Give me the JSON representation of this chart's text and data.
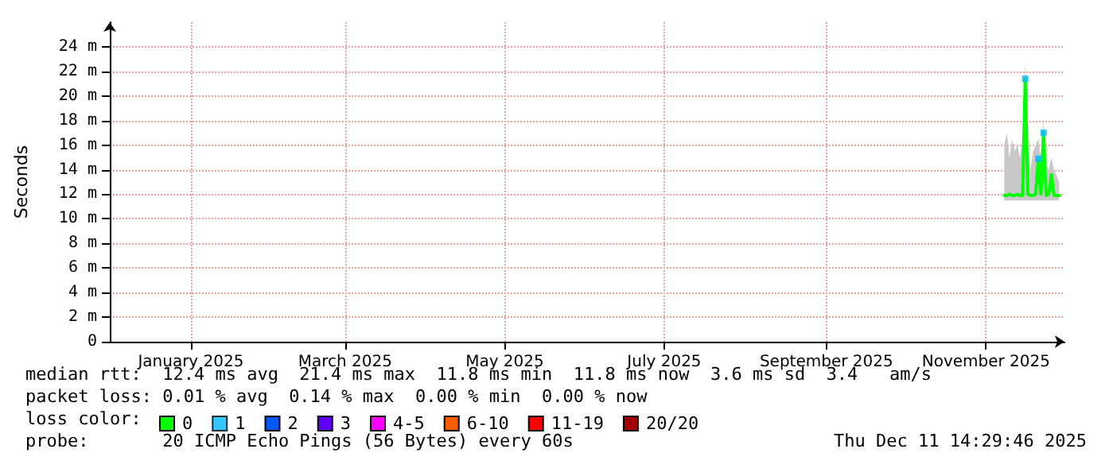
{
  "chart_data": {
    "type": "line",
    "ylabel": "Seconds",
    "x": [
      "2025-11-18",
      "2025-11-19",
      "2025-11-20",
      "2025-11-21",
      "2025-11-22",
      "2025-11-23",
      "2025-11-24",
      "2025-11-25",
      "2025-11-26",
      "2025-11-27",
      "2025-11-28",
      "2025-11-29",
      "2025-11-30",
      "2025-12-01",
      "2025-12-02",
      "2025-12-03",
      "2025-12-04",
      "2025-12-05",
      "2025-12-06",
      "2025-12-07",
      "2025-12-08",
      "2025-12-09"
    ],
    "xlim": [
      "2024-12-11",
      "2025-12-11"
    ],
    "xticks": [
      {
        "value": "2025-01-11",
        "label": "January 2025"
      },
      {
        "value": "2025-03-11",
        "label": "March 2025"
      },
      {
        "value": "2025-05-11",
        "label": "May 2025"
      },
      {
        "value": "2025-07-11",
        "label": "July 2025"
      },
      {
        "value": "2025-09-11",
        "label": "September 2025"
      },
      {
        "value": "2025-11-11",
        "label": "November 2025"
      }
    ],
    "ylim": [
      0,
      26
    ],
    "yticks": [
      0,
      {
        "value": 2,
        "label": "2 m"
      },
      {
        "value": 4,
        "label": "4 m"
      },
      {
        "value": 6,
        "label": "6 m"
      },
      {
        "value": 8,
        "label": "8 m"
      },
      {
        "value": 10,
        "label": "10 m"
      },
      {
        "value": 12,
        "label": "12 m"
      },
      {
        "value": 14,
        "label": "14 m"
      },
      {
        "value": 16,
        "label": "16 m"
      },
      {
        "value": 18,
        "label": "18 m"
      },
      {
        "value": 20,
        "label": "20 m"
      },
      {
        "value": 22,
        "label": "22 m"
      },
      {
        "value": 24,
        "label": "24 m"
      }
    ],
    "grid": true,
    "legend": "bottom",
    "legend_title": "loss color:",
    "marker": "none",
    "series": [
      {
        "name": "0",
        "color": "#00ff00",
        "values": [
          11.9,
          11.9,
          12.0,
          11.9,
          11.9,
          12.0,
          11.9,
          11.9,
          21.4,
          12.0,
          11.9,
          11.9,
          12.0,
          14.9,
          12.0,
          17.0,
          11.9,
          12.0,
          13.6,
          11.9,
          11.9,
          11.9
        ],
        "lower": [
          11.5,
          11.5,
          11.5,
          11.5,
          11.5,
          11.5,
          11.5,
          11.5,
          11.5,
          11.5,
          11.5,
          11.5,
          11.5,
          11.5,
          11.5,
          11.5,
          11.5,
          11.5,
          11.5,
          11.5,
          11.5,
          11.5
        ],
        "upper": [
          16.0,
          17.0,
          15.0,
          16.5,
          15.5,
          16.0,
          15.0,
          16.5,
          22.7,
          15.0,
          14.0,
          15.5,
          16.0,
          16.5,
          15.0,
          18.0,
          14.5,
          14.0,
          15.0,
          14.0,
          13.5,
          13.0
        ]
      },
      {
        "name": "1",
        "color": "#00b8ff",
        "type": "scatter",
        "marker": "square",
        "values": [
          null,
          null,
          null,
          null,
          null,
          null,
          null,
          null,
          21.4,
          null,
          null,
          null,
          null,
          14.9,
          null,
          17.0,
          null,
          null,
          null,
          null,
          null,
          null
        ]
      },
      {
        "name": "2",
        "color": "#0059ff",
        "values": [
          null,
          null,
          null,
          null,
          null,
          null,
          null,
          null,
          null,
          null,
          null,
          null,
          null,
          null,
          null,
          null,
          null,
          null,
          null,
          null,
          null,
          null
        ]
      },
      {
        "name": "3",
        "color": "#5e00ff",
        "values": [
          null,
          null,
          null,
          null,
          null,
          null,
          null,
          null,
          null,
          null,
          null,
          null,
          null,
          null,
          null,
          null,
          null,
          null,
          null,
          null,
          null,
          null
        ]
      },
      {
        "name": "4-5",
        "color": "#ff00fe",
        "values": [
          null,
          null,
          null,
          null,
          null,
          null,
          null,
          null,
          null,
          null,
          null,
          null,
          null,
          null,
          null,
          null,
          null,
          null,
          null,
          null,
          null,
          null
        ]
      },
      {
        "name": "6-10",
        "color": "#ff5e00",
        "values": [
          null,
          null,
          null,
          null,
          null,
          null,
          null,
          null,
          null,
          null,
          null,
          null,
          null,
          null,
          null,
          null,
          null,
          null,
          null,
          null,
          null,
          null
        ]
      },
      {
        "name": "11-19",
        "color": "#ff0000",
        "values": [
          null,
          null,
          null,
          null,
          null,
          null,
          null,
          null,
          null,
          null,
          null,
          null,
          null,
          null,
          null,
          null,
          null,
          null,
          null,
          null,
          null,
          null
        ]
      },
      {
        "name": "20/20",
        "color": "#a10000",
        "values": [
          null,
          null,
          null,
          null,
          null,
          null,
          null,
          null,
          null,
          null,
          null,
          null,
          null,
          null,
          null,
          null,
          null,
          null,
          null,
          null,
          null,
          null
        ]
      }
    ],
    "annotations": [
      "median rtt:  12.4 ms avg  21.4 ms max  11.8 ms min  11.8 ms now  3.6 ms sd  3.4   am/s",
      "packet loss: 0.01 % avg  0.14 % max  0.00 % min  0.00 % now",
      "probe:       20 ICMP Echo Pings (56 Bytes) every 60s",
      "Thu Dec 11 14:29:46 2025"
    ]
  }
}
